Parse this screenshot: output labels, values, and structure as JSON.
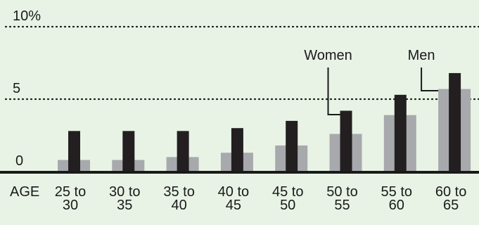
{
  "chart_data": {
    "type": "bar",
    "x_axis_label": "AGE",
    "categories": [
      [
        "25 to",
        "30"
      ],
      [
        "30 to",
        "35"
      ],
      [
        "35 to",
        "40"
      ],
      [
        "40 to",
        "45"
      ],
      [
        "45 to",
        "50"
      ],
      [
        "50 to",
        "55"
      ],
      [
        "55 to",
        "60"
      ],
      [
        "60 to",
        "65"
      ]
    ],
    "series": [
      {
        "name": "Men",
        "color": "#a7a9ac",
        "values": [
          0.8,
          0.8,
          1.0,
          1.3,
          1.8,
          2.6,
          3.9,
          5.7
        ]
      },
      {
        "name": "Women",
        "color": "#231f20",
        "values": [
          2.8,
          2.8,
          2.8,
          3.0,
          3.5,
          4.2,
          5.3,
          6.8
        ]
      }
    ],
    "y_ticks": [
      {
        "value": 0,
        "label": "0"
      },
      {
        "value": 5,
        "label": "5"
      },
      {
        "value": 10,
        "label": "10%"
      }
    ],
    "ylim": [
      0,
      10
    ],
    "grid": "dotted at 5 and 10",
    "annotations": [
      {
        "text": "Women",
        "series": "Women",
        "category_index": 5
      },
      {
        "text": "Men",
        "series": "Men",
        "category_index": 7
      }
    ],
    "colors": {
      "background": "#e8f3e5",
      "axis": "#1a1a1a",
      "grid": "#1a1a1a"
    }
  }
}
